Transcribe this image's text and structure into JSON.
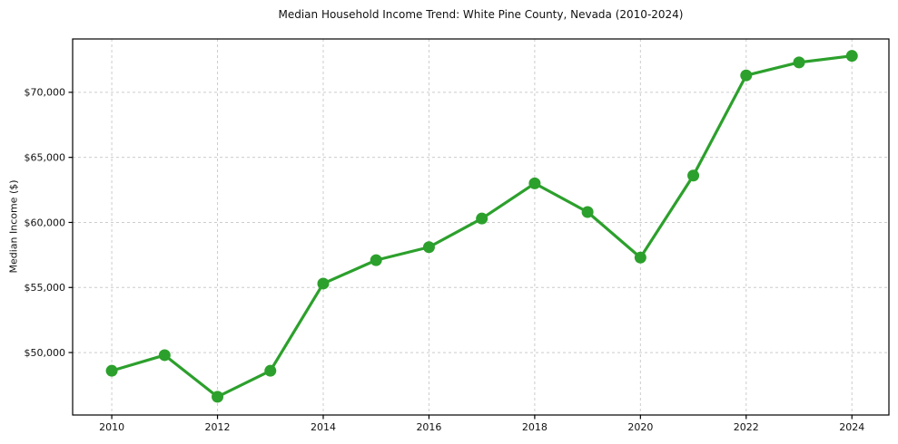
{
  "chart_data": {
    "type": "line",
    "title": "Median Household Income Trend: White Pine County, Nevada (2010-2024)",
    "xlabel": "",
    "ylabel": "Median Income ($)",
    "x": [
      2010,
      2011,
      2012,
      2013,
      2014,
      2015,
      2016,
      2017,
      2018,
      2019,
      2020,
      2021,
      2022,
      2023,
      2024
    ],
    "series": [
      {
        "name": "Median Household Income",
        "color": "#2ca02c",
        "values": [
          48600,
          49800,
          46600,
          48600,
          55300,
          57100,
          58100,
          60300,
          63000,
          60800,
          57300,
          63600,
          71300,
          72300,
          72800
        ]
      }
    ],
    "x_ticks": [
      2010,
      2012,
      2014,
      2016,
      2018,
      2020,
      2022,
      2024
    ],
    "y_ticks": [
      50000,
      55000,
      60000,
      65000,
      70000
    ],
    "y_tick_labels": [
      "$50,000",
      "$55,000",
      "$60,000",
      "$65,000",
      "$70,000"
    ],
    "xlim": [
      2009.26,
      2024.7
    ],
    "ylim": [
      45200,
      74100
    ],
    "grid": true,
    "grid_color": "#cccccc",
    "axis_color": "#000000",
    "text_color": "#111111",
    "legend": false,
    "legend_position": "none",
    "marker": "circle"
  }
}
